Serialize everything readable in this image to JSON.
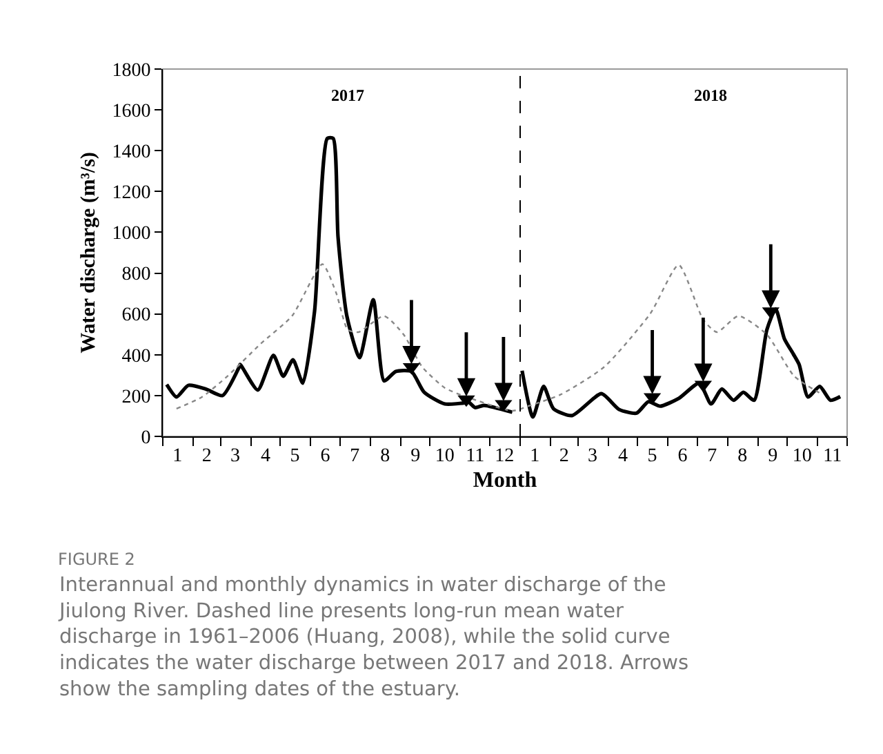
{
  "chart_data": {
    "type": "line",
    "xlabel": "Month",
    "ylabel": "Water discharge (m³/s)",
    "xlim": [
      "2017-01-01",
      "2018-12-01"
    ],
    "ylim": [
      0,
      1800
    ],
    "yticks": [
      0,
      200,
      400,
      600,
      800,
      1000,
      1200,
      1400,
      1600,
      1800
    ],
    "xticks": [
      {
        "value": "2017-01-01",
        "label": null
      },
      {
        "value": "2017-01-16",
        "label": "1"
      },
      {
        "value": "2017-02-01",
        "label": null
      },
      {
        "value": "2017-02-15",
        "label": "2"
      },
      {
        "value": "2017-03-01",
        "label": null
      },
      {
        "value": "2017-03-16",
        "label": "3"
      },
      {
        "value": "2017-04-01",
        "label": null
      },
      {
        "value": "2017-04-16",
        "label": "4"
      },
      {
        "value": "2017-05-01",
        "label": null
      },
      {
        "value": "2017-05-16",
        "label": "5"
      },
      {
        "value": "2017-06-01",
        "label": null
      },
      {
        "value": "2017-06-16",
        "label": "6"
      },
      {
        "value": "2017-07-01",
        "label": null
      },
      {
        "value": "2017-07-16",
        "label": "7"
      },
      {
        "value": "2017-08-01",
        "label": null
      },
      {
        "value": "2017-08-16",
        "label": "8"
      },
      {
        "value": "2017-09-01",
        "label": null
      },
      {
        "value": "2017-09-16",
        "label": "9"
      },
      {
        "value": "2017-10-01",
        "label": null
      },
      {
        "value": "2017-10-16",
        "label": "10"
      },
      {
        "value": "2017-11-01",
        "label": null
      },
      {
        "value": "2017-11-16",
        "label": "11"
      },
      {
        "value": "2017-12-01",
        "label": null
      },
      {
        "value": "2017-12-16",
        "label": "12"
      },
      {
        "value": "2018-01-01",
        "label": null
      },
      {
        "value": "2018-01-16",
        "label": "1"
      },
      {
        "value": "2018-02-01",
        "label": null
      },
      {
        "value": "2018-02-15",
        "label": "2"
      },
      {
        "value": "2018-03-01",
        "label": null
      },
      {
        "value": "2018-03-16",
        "label": "3"
      },
      {
        "value": "2018-04-01",
        "label": null
      },
      {
        "value": "2018-04-16",
        "label": "4"
      },
      {
        "value": "2018-05-01",
        "label": null
      },
      {
        "value": "2018-05-16",
        "label": "5"
      },
      {
        "value": "2018-06-01",
        "label": null
      },
      {
        "value": "2018-06-16",
        "label": "6"
      },
      {
        "value": "2018-07-01",
        "label": null
      },
      {
        "value": "2018-07-16",
        "label": "7"
      },
      {
        "value": "2018-08-01",
        "label": null
      },
      {
        "value": "2018-08-16",
        "label": "8"
      },
      {
        "value": "2018-09-01",
        "label": null
      },
      {
        "value": "2018-09-16",
        "label": "9"
      },
      {
        "value": "2018-10-01",
        "label": null
      },
      {
        "value": "2018-10-16",
        "label": "10"
      },
      {
        "value": "2018-11-01",
        "label": null
      },
      {
        "value": "2018-11-16",
        "label": "11"
      },
      {
        "value": "2018-12-01",
        "label": null
      }
    ],
    "grid": false,
    "marker": "none",
    "series": [
      {
        "color": "#000000",
        "line_style": "solid",
        "x": [
          "2017-01-05",
          "2017-01-15",
          "2017-01-27",
          "2017-02-14",
          "2017-03-03",
          "2017-03-20",
          "2017-03-21",
          "2017-04-08",
          "2017-04-24",
          "2017-05-04",
          "2017-05-14",
          "2017-05-24",
          "2017-06-05",
          "2017-06-18",
          "2017-06-24",
          "2017-06-29",
          "2017-07-08",
          "2017-07-21",
          "2017-08-04",
          "2017-08-15",
          "2017-08-27",
          "2017-09-12",
          "2017-09-25",
          "2017-10-16",
          "2017-11-07",
          "2017-11-09",
          "2017-11-16",
          "2017-11-25",
          "2017-12-24",
          "2017-12-31",
          "2018-01-03",
          "2018-01-14",
          "2018-01-25",
          "2018-02-04",
          "2018-02-23",
          "2018-03-25",
          "2018-04-12",
          "2018-04-30",
          "2018-05-12",
          "2018-05-24",
          "2018-06-12",
          "2018-07-03",
          "2018-07-15",
          "2018-07-26",
          "2018-08-07",
          "2018-08-17",
          "2018-08-28",
          "2018-09-10",
          "2018-09-19",
          "2018-09-28",
          "2018-10-07",
          "2018-10-13",
          "2018-10-22",
          "2018-11-03",
          "2018-11-14",
          "2018-11-24"
        ],
        "values": [
          254,
          193,
          250,
          232,
          200,
          340,
          352,
          227,
          397,
          295,
          375,
          261,
          613,
          1460,
          1460,
          976,
          590,
          386,
          670,
          272,
          318,
          318,
          216,
          159,
          166,
          170,
          141,
          152,
          118,
          null,
          322,
          95,
          245,
          136,
          102,
          209,
          132,
          114,
          170,
          148,
          186,
          261,
          159,
          232,
          177,
          216,
          177,
          522,
          624,
          477,
          404,
          352,
          193,
          245,
          177,
          195
        ]
      },
      {
        "color": "#888888",
        "line_style": "dotted",
        "x": [
          "2017-01-15",
          "2017-02-10",
          "2017-03-08",
          "2017-04-11",
          "2017-05-13",
          "2017-06-13",
          "2017-06-27",
          "2017-07-09",
          "2017-07-20",
          "2017-08-15",
          "2017-09-04",
          "2017-09-23",
          "2017-10-16",
          "2017-11-07",
          "2017-11-14",
          "2017-12-24",
          "2018-01-09",
          "2018-02-11",
          "2018-03-28",
          "2018-05-14",
          "2018-06-12",
          "2018-07-07",
          "2018-07-21",
          "2018-08-12",
          "2018-09-10",
          "2018-10-08",
          "2018-11-06"
        ],
        "values": [
          136,
          193,
          295,
          454,
          590,
          844,
          704,
          522,
          511,
          590,
          499,
          340,
          238,
          193,
          182,
          125,
          148,
          204,
          341,
          602,
          840,
          572,
          511,
          590,
          499,
          295,
          204
        ]
      },
      {
        "type": "scatter",
        "marker": "triangle",
        "color": "#000000",
        "x": [
          "2017-09-12",
          "2017-11-07",
          "2017-12-15",
          "2018-05-16",
          "2018-07-07",
          "2018-09-14"
        ],
        "values": [
          340,
          182,
          159,
          193,
          254,
          613
        ]
      }
    ],
    "ref_lines": [
      {
        "axis": "x",
        "value": "2018-01-01",
        "color": "#000000",
        "line_style": "dashed"
      }
    ],
    "annotations": [
      "2017",
      "2018",
      "FIGURE 2",
      "Interannual and monthly dynamics in water discharge of the Jiulong River. Dashed line presents long-run mean water discharge in 1961–2006 (Huang, 2008), while the solid curve indicates the water discharge between 2017 and 2018. Arrows show the sampling dates of the estuary."
    ]
  }
}
